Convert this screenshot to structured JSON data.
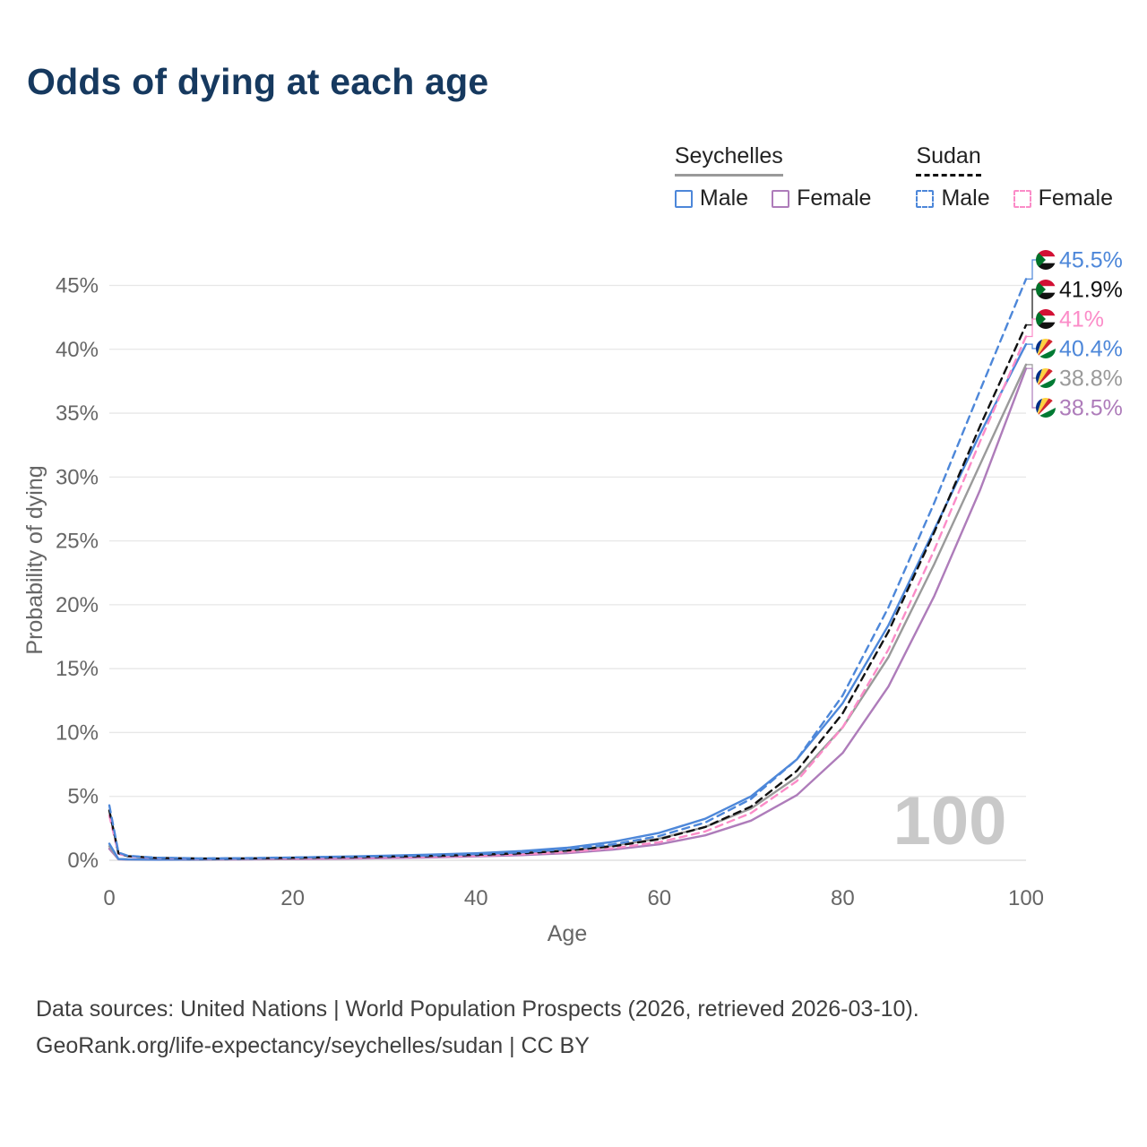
{
  "footer": {
    "sources": "Data sources: United Nations | World Population Prospects (2026, retrieved 2026-03-10).",
    "attribution": "GeoRank.org/life-expectancy/seychelles/sudan | CC BY"
  },
  "colors": {
    "title": "#16395f",
    "male_blue": "#4d87d9",
    "seychelles_female_purple": "#ae7cba",
    "sudan_female_pink": "#fb8cc8",
    "seychelles_both_gray": "#9a9a9a",
    "sudan_both_black": "#111111",
    "gridline": "#e7e7e7",
    "axis_text": "#666666",
    "watermark_gray": "#c9c9c9"
  },
  "legend": {
    "groups": [
      {
        "name": "Seychelles",
        "style": "solid",
        "color": "#9a9a9a",
        "items": [
          {
            "label": "Male",
            "color": "#4d87d9",
            "dashed": false
          },
          {
            "label": "Female",
            "color": "#ae7cba",
            "dashed": false
          }
        ]
      },
      {
        "name": "Sudan",
        "style": "dashed",
        "color": "#111111",
        "items": [
          {
            "label": "Male",
            "color": "#4d87d9",
            "dashed": true
          },
          {
            "label": "Female",
            "color": "#fb8cc8",
            "dashed": true
          }
        ]
      }
    ]
  },
  "chart_data": {
    "type": "line",
    "title": "Odds of dying at each age",
    "xlabel": "Age",
    "ylabel": "Probability of dying",
    "watermark": "100",
    "xlim": [
      0,
      100
    ],
    "ylim": [
      0,
      47
    ],
    "x_ticks": [
      0,
      20,
      40,
      60,
      80,
      100
    ],
    "y_ticks": [
      0,
      5,
      10,
      15,
      20,
      25,
      30,
      35,
      40,
      45
    ],
    "y_tick_suffix": "%",
    "grid": "horizontal",
    "legend_position": "top-right",
    "x": [
      0,
      1,
      2,
      5,
      10,
      15,
      20,
      25,
      30,
      35,
      40,
      45,
      50,
      55,
      60,
      65,
      70,
      75,
      80,
      85,
      90,
      95,
      100
    ],
    "series": [
      {
        "id": "sudan-male",
        "country": "Sudan",
        "sex": "Male",
        "color": "#4d87d9",
        "dashed": true,
        "flag": "sudan",
        "end_label": "45.5%",
        "end_value": 45.5,
        "y": [
          4.3,
          0.6,
          0.35,
          0.2,
          0.15,
          0.17,
          0.22,
          0.27,
          0.32,
          0.38,
          0.48,
          0.62,
          0.88,
          1.25,
          1.9,
          2.95,
          4.8,
          7.9,
          12.9,
          19.8,
          28.0,
          36.8,
          45.5
        ]
      },
      {
        "id": "sudan-both",
        "country": "Sudan",
        "sex": "Both",
        "color": "#111111",
        "dashed": true,
        "flag": "sudan",
        "end_label": "41.9%",
        "end_value": 41.9,
        "y": [
          3.9,
          0.55,
          0.32,
          0.18,
          0.13,
          0.15,
          0.19,
          0.23,
          0.28,
          0.33,
          0.42,
          0.55,
          0.76,
          1.1,
          1.65,
          2.6,
          4.2,
          7.0,
          11.5,
          17.9,
          25.7,
          34.0,
          41.9
        ]
      },
      {
        "id": "sudan-female",
        "country": "Sudan",
        "sex": "Female",
        "color": "#fb8cc8",
        "dashed": true,
        "flag": "sudan",
        "end_label": "41%",
        "end_value": 41.0,
        "y": [
          3.5,
          0.5,
          0.3,
          0.17,
          0.12,
          0.13,
          0.16,
          0.19,
          0.23,
          0.28,
          0.36,
          0.47,
          0.65,
          0.95,
          1.42,
          2.25,
          3.7,
          6.2,
          10.4,
          16.5,
          24.3,
          32.8,
          41.0
        ]
      },
      {
        "id": "seychelles-male",
        "country": "Seychelles",
        "sex": "Male",
        "color": "#4d87d9",
        "dashed": false,
        "flag": "seychelles",
        "end_label": "40.4%",
        "end_value": 40.4,
        "y": [
          1.3,
          0.1,
          0.07,
          0.05,
          0.06,
          0.11,
          0.2,
          0.28,
          0.35,
          0.44,
          0.55,
          0.72,
          0.98,
          1.45,
          2.15,
          3.25,
          5.0,
          7.9,
          12.3,
          18.4,
          25.9,
          33.4,
          40.4
        ]
      },
      {
        "id": "seychelles-both",
        "country": "Seychelles",
        "sex": "Both",
        "color": "#9a9a9a",
        "dashed": false,
        "flag": "seychelles",
        "end_label": "38.8%",
        "end_value": 38.8,
        "y": [
          1.1,
          0.09,
          0.06,
          0.05,
          0.05,
          0.09,
          0.15,
          0.21,
          0.27,
          0.34,
          0.43,
          0.57,
          0.78,
          1.15,
          1.7,
          2.6,
          4.05,
          6.5,
          10.4,
          15.9,
          23.2,
          31.0,
          38.8
        ]
      },
      {
        "id": "seychelles-female",
        "country": "Seychelles",
        "sex": "Female",
        "color": "#ae7cba",
        "dashed": false,
        "flag": "seychelles",
        "end_label": "38.5%",
        "end_value": 38.5,
        "y": [
          0.9,
          0.08,
          0.05,
          0.04,
          0.04,
          0.07,
          0.09,
          0.12,
          0.16,
          0.22,
          0.3,
          0.4,
          0.56,
          0.84,
          1.25,
          1.95,
          3.1,
          5.1,
          8.4,
          13.6,
          20.7,
          29.0,
          38.5
        ]
      }
    ]
  }
}
